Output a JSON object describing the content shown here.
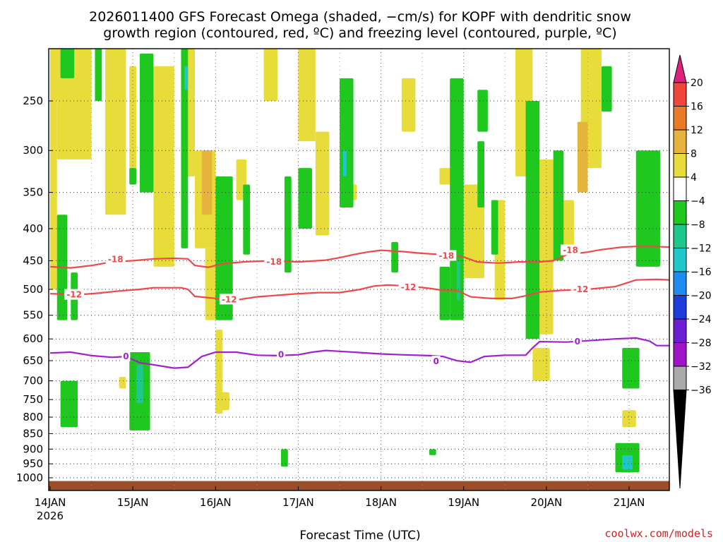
{
  "title": {
    "line1": "2026011400 GFS Forecast Omega (shaded, −cm/s) for KOPF with dendritic snow",
    "line2": "growth region (contoured, red, ºC) and freezing level (contoured, purple, ºC)"
  },
  "credit": "coolwx.com/models",
  "chart_data": {
    "type": "heatmap",
    "xlabel": "Forecast Time (UTC)",
    "ylabel": "",
    "x_unit": "hours since 2026-01-14 00 UTC",
    "xlim": [
      0,
      180
    ],
    "x_ticks": [
      {
        "hour": 0,
        "label": "14JAN",
        "sublabel": "2026"
      },
      {
        "hour": 24,
        "label": "15JAN"
      },
      {
        "hour": 48,
        "label": "16JAN"
      },
      {
        "hour": 72,
        "label": "17JAN"
      },
      {
        "hour": 96,
        "label": "18JAN"
      },
      {
        "hour": 120,
        "label": "19JAN"
      },
      {
        "hour": 144,
        "label": "20JAN"
      },
      {
        "hour": 168,
        "label": "21JAN"
      }
    ],
    "y_scale": "log-pressure (inverted)",
    "y_unit": "hPa",
    "ylim": [
      1035,
      200
    ],
    "y_ticks": [
      250,
      300,
      350,
      400,
      450,
      500,
      550,
      600,
      650,
      700,
      750,
      800,
      850,
      900,
      950,
      1000
    ],
    "grid": true,
    "colorbar": {
      "unit": "−cm/s",
      "ticks": [
        20,
        16,
        12,
        8,
        4,
        -4,
        -8,
        -12,
        -16,
        -20,
        -24,
        -28,
        -32,
        -36
      ],
      "bins": [
        {
          "from": 20,
          "to": 99,
          "color": "#e0207e"
        },
        {
          "from": 16,
          "to": 20,
          "color": "#f0463c"
        },
        {
          "from": 12,
          "to": 16,
          "color": "#e87a28"
        },
        {
          "from": 8,
          "to": 12,
          "color": "#e6b43c"
        },
        {
          "from": 4,
          "to": 8,
          "color": "#e8dc3a"
        },
        {
          "from": -4,
          "to": 4,
          "color": "#ffffff"
        },
        {
          "from": -8,
          "to": -4,
          "color": "#1ec81e"
        },
        {
          "from": -12,
          "to": -8,
          "color": "#1ec88c"
        },
        {
          "from": -16,
          "to": -12,
          "color": "#1ec8c8"
        },
        {
          "from": -20,
          "to": -16,
          "color": "#1e8cf0"
        },
        {
          "from": -24,
          "to": -20,
          "color": "#1e3cdc"
        },
        {
          "from": -28,
          "to": -24,
          "color": "#6e1ed2"
        },
        {
          "from": -32,
          "to": -28,
          "color": "#a014c8"
        },
        {
          "from": -36,
          "to": -32,
          "color": "#aaaaaa"
        },
        {
          "from": -99,
          "to": -36,
          "color": "#000000"
        }
      ]
    },
    "contours": [
      {
        "value": -18,
        "label": "-18",
        "color": "#f04848",
        "points": [
          [
            0,
            460
          ],
          [
            6,
            462
          ],
          [
            12,
            458
          ],
          [
            18,
            452
          ],
          [
            24,
            450
          ],
          [
            30,
            447
          ],
          [
            36,
            446
          ],
          [
            40,
            447
          ],
          [
            42,
            458
          ],
          [
            46,
            461
          ],
          [
            50,
            455
          ],
          [
            56,
            452
          ],
          [
            64,
            450
          ],
          [
            72,
            452
          ],
          [
            80,
            449
          ],
          [
            84,
            445
          ],
          [
            88,
            440
          ],
          [
            92,
            436
          ],
          [
            96,
            433
          ],
          [
            102,
            435
          ],
          [
            108,
            438
          ],
          [
            114,
            440
          ],
          [
            118,
            442
          ],
          [
            120,
            444
          ],
          [
            124,
            452
          ],
          [
            130,
            454
          ],
          [
            136,
            452
          ],
          [
            142,
            452
          ],
          [
            146,
            450
          ],
          [
            150,
            440
          ],
          [
            156,
            436
          ],
          [
            160,
            432
          ],
          [
            166,
            428
          ],
          [
            170,
            427
          ],
          [
            174,
            427
          ],
          [
            180,
            428
          ]
        ],
        "label_at": [
          [
            19,
            448
          ],
          [
            65,
            452
          ],
          [
            115,
            442
          ],
          [
            151,
            433
          ]
        ]
      },
      {
        "value": -12,
        "label": "-12",
        "color": "#f04848",
        "points": [
          [
            0,
            508
          ],
          [
            8,
            510
          ],
          [
            14,
            507
          ],
          [
            20,
            503
          ],
          [
            26,
            500
          ],
          [
            30,
            497
          ],
          [
            38,
            497
          ],
          [
            40,
            500
          ],
          [
            42,
            513
          ],
          [
            48,
            517
          ],
          [
            54,
            520
          ],
          [
            60,
            514
          ],
          [
            66,
            511
          ],
          [
            72,
            508
          ],
          [
            78,
            506
          ],
          [
            84,
            506
          ],
          [
            90,
            500
          ],
          [
            94,
            494
          ],
          [
            98,
            492
          ],
          [
            104,
            494
          ],
          [
            110,
            498
          ],
          [
            114,
            502
          ],
          [
            118,
            502
          ],
          [
            122,
            514
          ],
          [
            128,
            517
          ],
          [
            134,
            517
          ],
          [
            138,
            512
          ],
          [
            142,
            505
          ],
          [
            148,
            502
          ],
          [
            156,
            500
          ],
          [
            164,
            495
          ],
          [
            170,
            483
          ],
          [
            176,
            482
          ],
          [
            180,
            483
          ]
        ],
        "label_at": [
          [
            7,
            510
          ],
          [
            52,
            519
          ],
          [
            104,
            496
          ],
          [
            154,
            500
          ]
        ]
      },
      {
        "value": 0,
        "label": "0",
        "color": "#a020d0",
        "points": [
          [
            0,
            632
          ],
          [
            6,
            630
          ],
          [
            12,
            638
          ],
          [
            18,
            642
          ],
          [
            22,
            640
          ],
          [
            26,
            655
          ],
          [
            30,
            660
          ],
          [
            36,
            668
          ],
          [
            40,
            666
          ],
          [
            44,
            640
          ],
          [
            48,
            630
          ],
          [
            54,
            630
          ],
          [
            60,
            637
          ],
          [
            66,
            638
          ],
          [
            72,
            636
          ],
          [
            76,
            630
          ],
          [
            80,
            626
          ],
          [
            84,
            628
          ],
          [
            90,
            631
          ],
          [
            96,
            634
          ],
          [
            102,
            636
          ],
          [
            110,
            638
          ],
          [
            114,
            640
          ],
          [
            118,
            650
          ],
          [
            122,
            654
          ],
          [
            126,
            640
          ],
          [
            132,
            637
          ],
          [
            138,
            637
          ],
          [
            140,
            620
          ],
          [
            142,
            606
          ],
          [
            150,
            607
          ],
          [
            156,
            604
          ],
          [
            164,
            600
          ],
          [
            170,
            598
          ],
          [
            174,
            605
          ],
          [
            176,
            615
          ],
          [
            180,
            615
          ]
        ],
        "label_at": [
          [
            22,
            640
          ],
          [
            67,
            636
          ],
          [
            112,
            652
          ],
          [
            153,
            606
          ]
        ]
      }
    ],
    "shaded_regions": [
      {
        "value": 6,
        "x": [
          0,
          2
        ],
        "y": [
          215,
          500
        ]
      },
      {
        "value": 6,
        "x": [
          0,
          12
        ],
        "y": [
          200,
          250
        ]
      },
      {
        "value": 6,
        "x": [
          2,
          12
        ],
        "y": [
          250,
          310
        ]
      },
      {
        "value": 6,
        "x": [
          16,
          22
        ],
        "y": [
          200,
          380
        ]
      },
      {
        "value": 6,
        "x": [
          23,
          25
        ],
        "y": [
          220,
          340
        ]
      },
      {
        "value": 6,
        "x": [
          30,
          36
        ],
        "y": [
          220,
          460
        ]
      },
      {
        "value": 6,
        "x": [
          38,
          42
        ],
        "y": [
          200,
          330
        ]
      },
      {
        "value": 6,
        "x": [
          42,
          48
        ],
        "y": [
          300,
          430
        ]
      },
      {
        "value": 10,
        "x": [
          44,
          47
        ],
        "y": [
          300,
          380
        ]
      },
      {
        "value": 6,
        "x": [
          45,
          49
        ],
        "y": [
          430,
          560
        ]
      },
      {
        "value": 6,
        "x": [
          54,
          57
        ],
        "y": [
          310,
          360
        ]
      },
      {
        "value": 6,
        "x": [
          62,
          66
        ],
        "y": [
          200,
          250
        ]
      },
      {
        "value": 6,
        "x": [
          72,
          77
        ],
        "y": [
          200,
          290
        ]
      },
      {
        "value": 6,
        "x": [
          77,
          81
        ],
        "y": [
          280,
          410
        ]
      },
      {
        "value": 6,
        "x": [
          86,
          89
        ],
        "y": [
          340,
          360
        ]
      },
      {
        "value": 6,
        "x": [
          102,
          106
        ],
        "y": [
          230,
          280
        ]
      },
      {
        "value": 6,
        "x": [
          113,
          117
        ],
        "y": [
          320,
          340
        ]
      },
      {
        "value": 6,
        "x": [
          120,
          126
        ],
        "y": [
          340,
          480
        ]
      },
      {
        "value": 6,
        "x": [
          129,
          132
        ],
        "y": [
          360,
          520
        ]
      },
      {
        "value": 6,
        "x": [
          135,
          140
        ],
        "y": [
          200,
          330
        ]
      },
      {
        "value": 6,
        "x": [
          141,
          146
        ],
        "y": [
          310,
          590
        ]
      },
      {
        "value": 6,
        "x": [
          154,
          160
        ],
        "y": [
          200,
          320
        ]
      },
      {
        "value": 6,
        "x": [
          148,
          152
        ],
        "y": [
          360,
          440
        ]
      },
      {
        "value": 6,
        "x": [
          140,
          145
        ],
        "y": [
          620,
          700
        ]
      },
      {
        "value": 10,
        "x": [
          153,
          156
        ],
        "y": [
          270,
          350
        ]
      },
      {
        "value": 6,
        "x": [
          166,
          170
        ],
        "y": [
          780,
          830
        ]
      },
      {
        "value": 6,
        "x": [
          20,
          22
        ],
        "y": [
          690,
          720
        ]
      },
      {
        "value": 6,
        "x": [
          48,
          50
        ],
        "y": [
          580,
          790
        ]
      },
      {
        "value": 6,
        "x": [
          49,
          52
        ],
        "y": [
          730,
          780
        ]
      },
      {
        "value": -6,
        "x": [
          3,
          7
        ],
        "y": [
          200,
          230
        ]
      },
      {
        "value": -6,
        "x": [
          13,
          15
        ],
        "y": [
          200,
          250
        ]
      },
      {
        "value": -6,
        "x": [
          23,
          25
        ],
        "y": [
          320,
          340
        ]
      },
      {
        "value": -6,
        "x": [
          26,
          30
        ],
        "y": [
          210,
          350
        ]
      },
      {
        "value": -6,
        "x": [
          38,
          40
        ],
        "y": [
          200,
          430
        ]
      },
      {
        "value": -14,
        "x": [
          39,
          40
        ],
        "y": [
          220,
          240
        ]
      },
      {
        "value": -6,
        "x": [
          48,
          53
        ],
        "y": [
          330,
          560
        ]
      },
      {
        "value": -6,
        "x": [
          56,
          58
        ],
        "y": [
          340,
          440
        ]
      },
      {
        "value": -6,
        "x": [
          68,
          70
        ],
        "y": [
          330,
          470
        ]
      },
      {
        "value": -6,
        "x": [
          72,
          76
        ],
        "y": [
          320,
          400
        ]
      },
      {
        "value": -6,
        "x": [
          84,
          88
        ],
        "y": [
          230,
          370
        ]
      },
      {
        "value": -14,
        "x": [
          85,
          86
        ],
        "y": [
          300,
          330
        ]
      },
      {
        "value": -6,
        "x": [
          99,
          101
        ],
        "y": [
          420,
          470
        ]
      },
      {
        "value": -6,
        "x": [
          113,
          116
        ],
        "y": [
          460,
          560
        ]
      },
      {
        "value": -6,
        "x": [
          116,
          120
        ],
        "y": [
          230,
          560
        ]
      },
      {
        "value": -10,
        "x": [
          118,
          119
        ],
        "y": [
          450,
          520
        ]
      },
      {
        "value": -6,
        "x": [
          124,
          127
        ],
        "y": [
          240,
          280
        ]
      },
      {
        "value": -6,
        "x": [
          124,
          126
        ],
        "y": [
          290,
          370
        ]
      },
      {
        "value": -6,
        "x": [
          128,
          130
        ],
        "y": [
          360,
          440
        ]
      },
      {
        "value": -6,
        "x": [
          138,
          142
        ],
        "y": [
          250,
          600
        ]
      },
      {
        "value": -6,
        "x": [
          146,
          149
        ],
        "y": [
          300,
          450
        ]
      },
      {
        "value": -6,
        "x": [
          160,
          163
        ],
        "y": [
          220,
          260
        ]
      },
      {
        "value": -6,
        "x": [
          170,
          177
        ],
        "y": [
          300,
          460
        ]
      },
      {
        "value": -6,
        "x": [
          166,
          171
        ],
        "y": [
          620,
          720
        ]
      },
      {
        "value": -6,
        "x": [
          164,
          171
        ],
        "y": [
          880,
          980
        ]
      },
      {
        "value": -14,
        "x": [
          166,
          169
        ],
        "y": [
          920,
          970
        ]
      },
      {
        "value": -6,
        "x": [
          23,
          29
        ],
        "y": [
          630,
          840
        ]
      },
      {
        "value": -12,
        "x": [
          25,
          27
        ],
        "y": [
          660,
          760
        ]
      },
      {
        "value": -6,
        "x": [
          2,
          5
        ],
        "y": [
          380,
          560
        ]
      },
      {
        "value": -6,
        "x": [
          6,
          8
        ],
        "y": [
          470,
          560
        ]
      },
      {
        "value": -6,
        "x": [
          3,
          8
        ],
        "y": [
          700,
          830
        ]
      },
      {
        "value": -6,
        "x": [
          110,
          112
        ],
        "y": [
          900,
          920
        ]
      },
      {
        "value": -6,
        "x": [
          67,
          69
        ],
        "y": [
          900,
          960
        ]
      }
    ],
    "surface_band": {
      "color": "#9c4e28",
      "y": [
        1035,
        1012
      ]
    }
  }
}
